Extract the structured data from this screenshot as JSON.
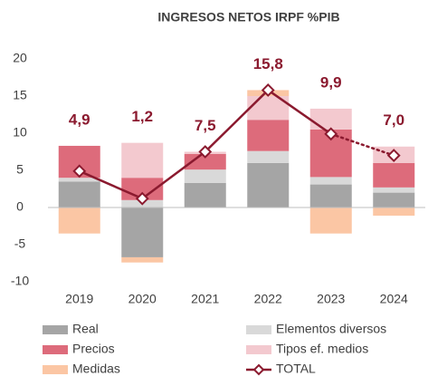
{
  "chart_data": {
    "type": "stacked_bar_line",
    "title": "INGRESOS NETOS IRPF %PIB",
    "categories": [
      "2019",
      "2020",
      "2021",
      "2022",
      "2023",
      "2024"
    ],
    "ylim": [
      -10,
      20
    ],
    "yticks": [
      -10,
      -5,
      0,
      5,
      10,
      15,
      20
    ],
    "series": [
      {
        "name": "Real",
        "color": "#a5a5a5",
        "values": [
          3.5,
          -6.7,
          3.3,
          6.0,
          3.1,
          2.0
        ]
      },
      {
        "name": "Elementos diversos",
        "color": "#d9d9d9",
        "values": [
          0.5,
          1.0,
          1.8,
          1.6,
          1.0,
          0.7
        ]
      },
      {
        "name": "Precios",
        "color": "#dd6b7b",
        "values": [
          4.3,
          3.0,
          2.1,
          4.2,
          6.4,
          3.3
        ]
      },
      {
        "name": "Tipos ef. medios",
        "color": "#f3c9cf",
        "values": [
          0,
          4.7,
          0.3,
          3.2,
          2.8,
          2.2
        ]
      },
      {
        "name": "Medidas",
        "color": "#fbc6a4",
        "values": [
          -3.5,
          -0.7,
          0,
          0.8,
          -3.5,
          -1.1
        ]
      }
    ],
    "line": {
      "name": "TOTAL",
      "color": "#8b1a2f",
      "values": [
        4.9,
        1.2,
        7.5,
        15.8,
        9.9,
        7.0
      ],
      "value_labels": [
        "4,9",
        "1,2",
        "7,5",
        "15,8",
        "9,9",
        "7,0"
      ],
      "segment_styles": [
        "solid",
        "solid",
        "solid",
        "solid",
        "dotted"
      ]
    }
  }
}
